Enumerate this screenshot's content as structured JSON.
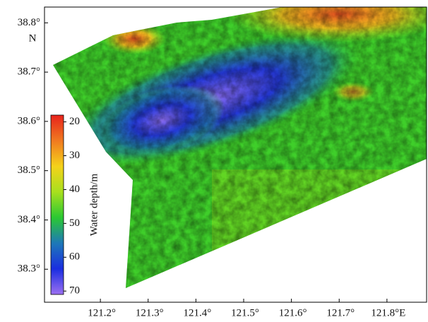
{
  "map": {
    "xlim": [
      121.083,
      121.883
    ],
    "xticks": [
      {
        "value": 121.2,
        "label": "121.2°"
      },
      {
        "value": 121.3,
        "label": "121.3°"
      },
      {
        "value": 121.4,
        "label": "121.4°"
      },
      {
        "value": 121.5,
        "label": "121.5°"
      },
      {
        "value": 121.6,
        "label": "121.6°"
      },
      {
        "value": 121.7,
        "label": "121.7°"
      },
      {
        "value": 121.8,
        "label": "121.8°E"
      }
    ],
    "ylim": [
      38.233,
      38.832
    ],
    "yticks": [
      {
        "value": 38.8,
        "label": "38.8°"
      },
      {
        "value": 38.7,
        "label": "38.7°"
      },
      {
        "value": 38.6,
        "label": "38.6°"
      },
      {
        "value": 38.5,
        "label": "38.5°"
      },
      {
        "value": 38.4,
        "label": "38.4°"
      },
      {
        "value": 38.3,
        "label": "38.3°"
      }
    ],
    "y_hemisphere": "N",
    "colorbar": {
      "label": "Water depth/m",
      "clim": [
        18,
        71
      ],
      "ticks": [
        20,
        30,
        40,
        50,
        60,
        70
      ],
      "colormap": [
        "#e8231c",
        "#f07a20",
        "#f5d21a",
        "#a8e01e",
        "#2ac832",
        "#1e78b8",
        "#1a2ee0",
        "#9c70f2"
      ]
    }
  }
}
